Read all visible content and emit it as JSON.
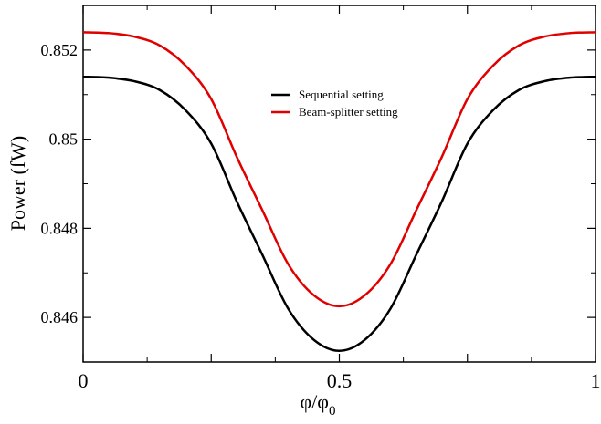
{
  "chart_data": {
    "type": "line",
    "xlabel": "φ/φ",
    "xlabel_subscript": "0",
    "ylabel": "Power (fW)",
    "xlim": [
      0,
      1
    ],
    "ylim": [
      0.845,
      0.853
    ],
    "xticks": [
      0,
      0.25,
      0.5,
      0.75,
      1
    ],
    "xtick_labels": [
      "0",
      "",
      "0.5",
      "",
      "1"
    ],
    "yticks": [
      0.846,
      0.848,
      0.85,
      0.852
    ],
    "ytick_labels": [
      "0.846",
      "0.848",
      "0.85",
      "0.852"
    ],
    "grid": false,
    "legend_position": "top-center",
    "series": [
      {
        "name": "Sequential setting",
        "color": "#000000",
        "x": [
          0,
          0.05,
          0.1,
          0.15,
          0.2,
          0.25,
          0.3,
          0.35,
          0.4,
          0.45,
          0.5,
          0.55,
          0.6,
          0.65,
          0.7,
          0.75,
          0.8,
          0.85,
          0.9,
          0.95,
          1
        ],
        "y": [
          0.8514,
          0.85138,
          0.8513,
          0.8511,
          0.85065,
          0.8499,
          0.8486,
          0.8474,
          0.8462,
          0.8455,
          0.84525,
          0.8455,
          0.8462,
          0.8474,
          0.8486,
          0.8499,
          0.85065,
          0.8511,
          0.8513,
          0.85138,
          0.8514
        ]
      },
      {
        "name": "Beam-splitter setting",
        "color": "#e00000",
        "x": [
          0,
          0.05,
          0.1,
          0.15,
          0.2,
          0.25,
          0.3,
          0.35,
          0.4,
          0.45,
          0.5,
          0.55,
          0.6,
          0.65,
          0.7,
          0.75,
          0.8,
          0.85,
          0.9,
          0.95,
          1
        ],
        "y": [
          0.8524,
          0.85238,
          0.8523,
          0.8521,
          0.85165,
          0.8509,
          0.8496,
          0.8484,
          0.8472,
          0.8465,
          0.84625,
          0.8465,
          0.8472,
          0.8484,
          0.8496,
          0.8509,
          0.85165,
          0.8521,
          0.8523,
          0.85238,
          0.8524
        ]
      }
    ]
  }
}
